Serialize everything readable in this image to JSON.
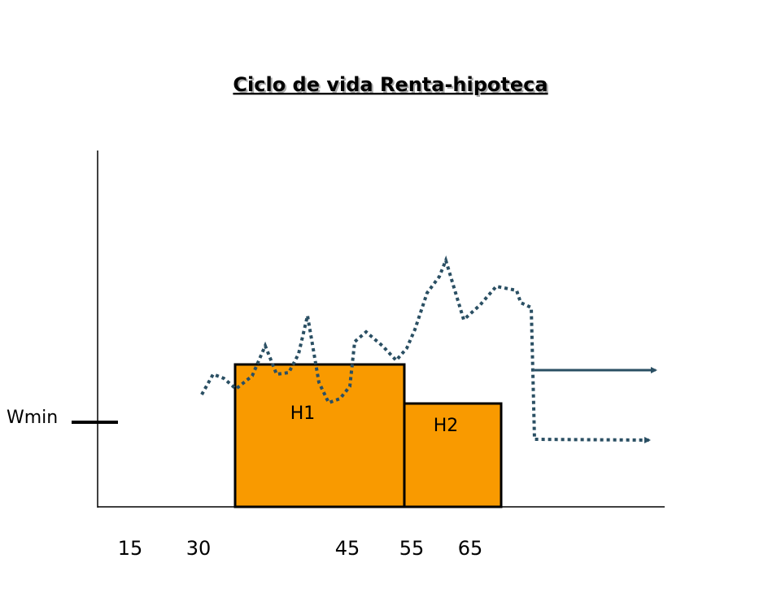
{
  "title": "Ciclo de vida Renta-hipoteca",
  "threshold_label": "Wmin",
  "boxes": [
    {
      "label": "H1"
    },
    {
      "label": "H2"
    }
  ],
  "axis_labels": [
    "15",
    "30",
    "45",
    "55",
    "65"
  ]
}
